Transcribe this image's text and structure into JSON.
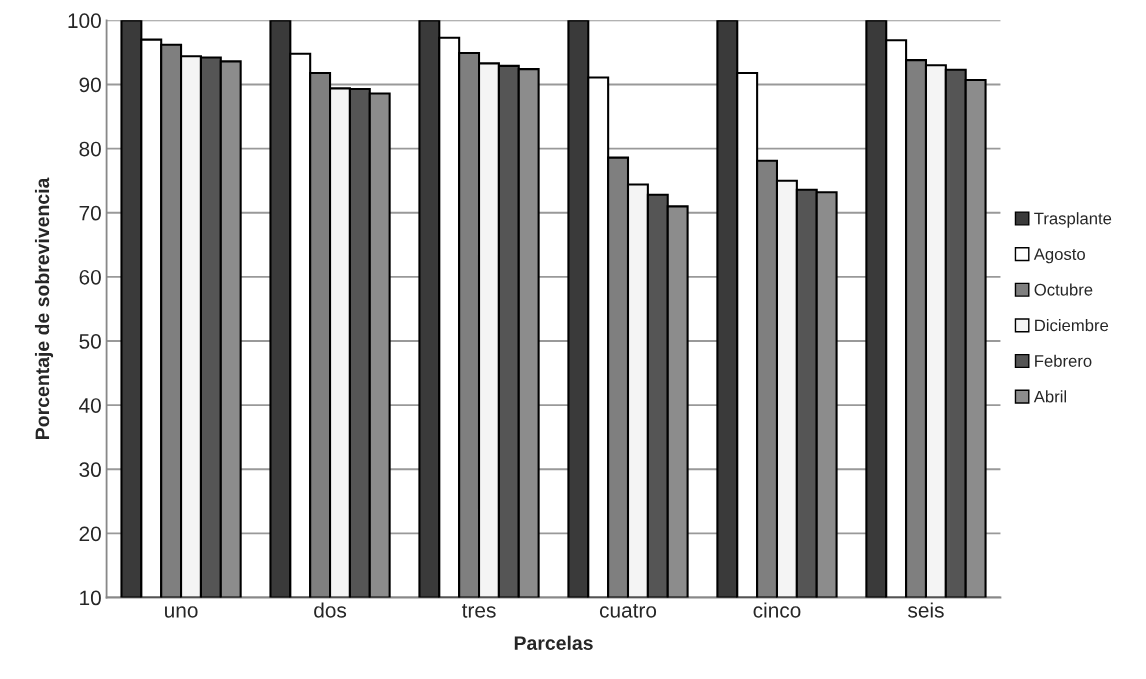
{
  "chart_data": {
    "type": "bar",
    "xlabel": "Parcelas",
    "ylabel": "Porcentaje de sobrevivencia",
    "categories": [
      "uno",
      "dos",
      "tres",
      "cuatro",
      "cinco",
      "seis"
    ],
    "ylim": [
      10,
      100
    ],
    "yticks": [
      10,
      20,
      30,
      40,
      50,
      60,
      70,
      80,
      90,
      100
    ],
    "grid": "y",
    "legend": "right",
    "series": [
      {
        "name": "Trasplante",
        "color": "#3a3a3a",
        "values": [
          100,
          100,
          100,
          100,
          100,
          100
        ]
      },
      {
        "name": "Agosto",
        "color": "#ffffff",
        "values": [
          97.0,
          94.8,
          97.3,
          91.1,
          91.8,
          96.9
        ]
      },
      {
        "name": "Octubre",
        "color": "#7f7f7f",
        "values": [
          96.2,
          91.8,
          94.9,
          78.6,
          78.1,
          93.8
        ]
      },
      {
        "name": "Diciembre",
        "color": "#f4f4f4",
        "values": [
          94.4,
          89.4,
          93.3,
          74.4,
          75.0,
          93.0
        ]
      },
      {
        "name": "Febrero",
        "color": "#555555",
        "values": [
          94.2,
          89.3,
          92.9,
          72.8,
          73.6,
          92.3
        ]
      },
      {
        "name": "Abril",
        "color": "#8c8c8c",
        "values": [
          93.6,
          88.6,
          92.4,
          71.0,
          73.2,
          90.7
        ]
      }
    ]
  }
}
